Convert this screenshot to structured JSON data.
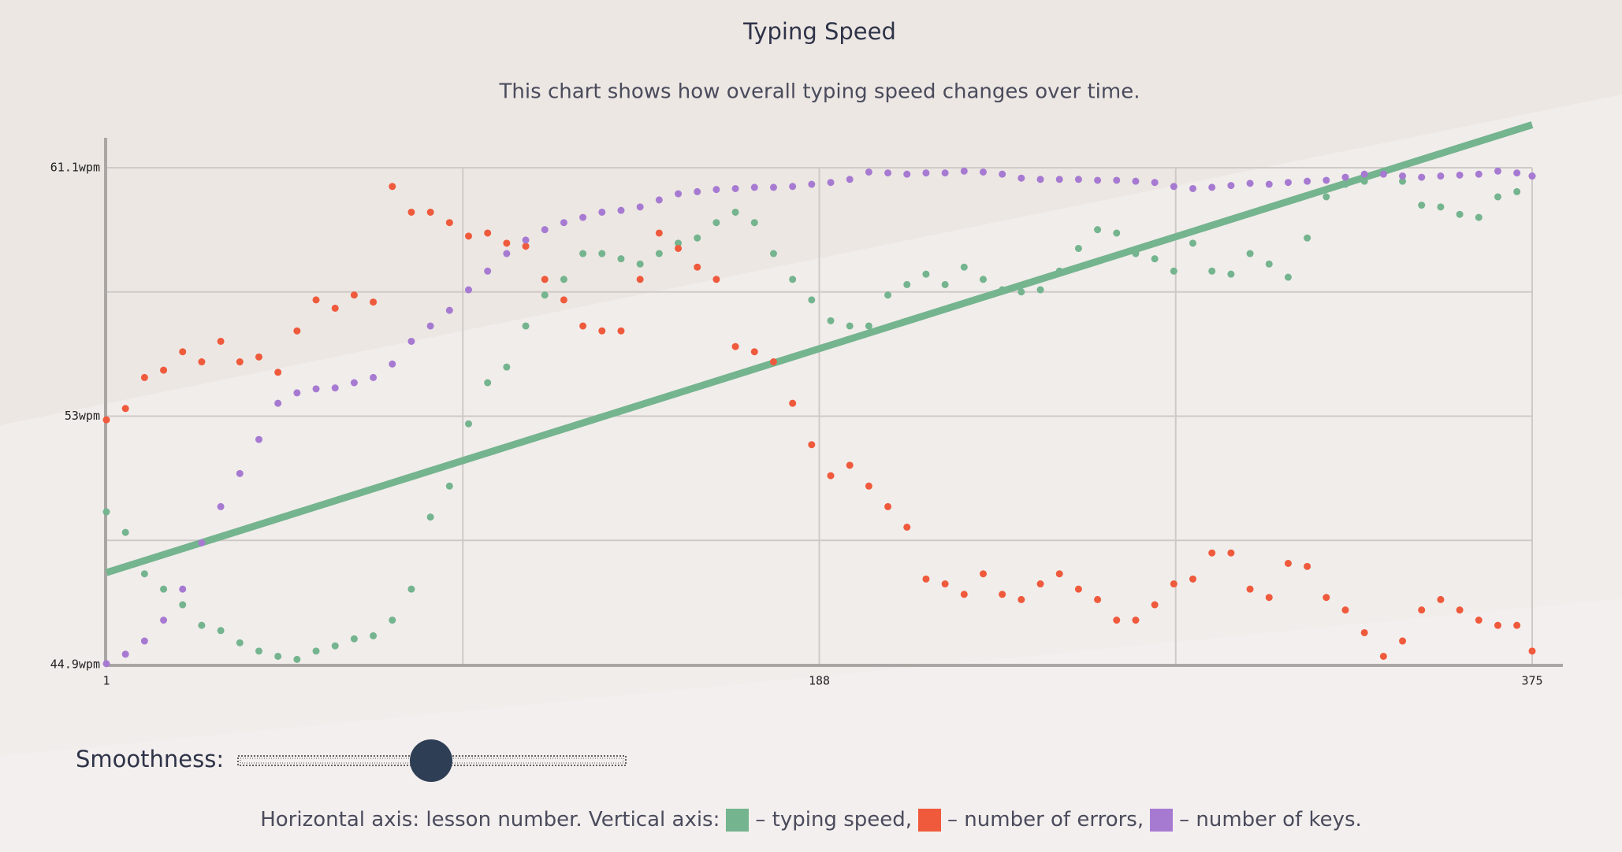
{
  "chart_data": {
    "type": "scatter",
    "title": "Typing Speed",
    "subtitle": "This chart shows how overall typing speed changes over time.",
    "slider_label": "Smoothness:",
    "legend_prefix": "Horizontal axis: lesson number. Vertical axis:",
    "x": [
      1,
      6,
      11,
      16,
      21,
      26,
      31,
      36,
      41,
      46,
      51,
      56,
      61,
      66,
      71,
      76,
      81,
      86,
      91,
      96,
      101,
      106,
      111,
      116,
      121,
      126,
      131,
      136,
      141,
      146,
      151,
      156,
      161,
      166,
      171,
      176,
      181,
      186,
      191,
      196,
      201,
      206,
      211,
      216,
      221,
      226,
      231,
      236,
      241,
      246,
      251,
      256,
      261,
      266,
      271,
      276,
      281,
      286,
      291,
      296,
      301,
      306,
      311,
      316,
      321,
      326,
      331,
      336,
      341,
      346,
      351,
      356,
      361,
      366,
      371,
      375
    ],
    "series": [
      {
        "name": "– typing speed,",
        "color": "#74b48e",
        "values": [
          49.88,
          49.21,
          47.86,
          47.36,
          46.85,
          46.18,
          46.01,
          45.61,
          45.34,
          45.17,
          45.07,
          45.34,
          45.51,
          45.74,
          45.84,
          46.35,
          47.36,
          49.71,
          50.72,
          52.75,
          54.09,
          54.6,
          55.94,
          56.95,
          57.46,
          58.3,
          58.3,
          58.13,
          57.96,
          58.3,
          58.64,
          58.81,
          59.31,
          59.65,
          59.31,
          58.3,
          57.46,
          56.79,
          56.11,
          55.94,
          55.94,
          56.95,
          57.29,
          57.63,
          57.29,
          57.86,
          57.46,
          57.12,
          57.05,
          57.12,
          57.73,
          58.47,
          59.08,
          58.97,
          58.3,
          58.13,
          57.73,
          58.64,
          57.73,
          57.63,
          58.3,
          57.96,
          57.53,
          58.81,
          60.15,
          60.56,
          60.66,
          60.99,
          60.66,
          59.88,
          59.82,
          59.58,
          59.48,
          60.15,
          60.32,
          60.83
        ]
      },
      {
        "name": "– number of errors,",
        "color": "#ef5a3c",
        "values": [
          52.88,
          53.25,
          54.26,
          54.5,
          55.1,
          54.77,
          55.44,
          54.77,
          54.93,
          54.43,
          55.78,
          56.79,
          56.52,
          56.95,
          56.72,
          60.49,
          59.65,
          59.65,
          59.31,
          58.87,
          58.97,
          58.64,
          58.54,
          57.46,
          56.79,
          55.94,
          55.78,
          55.78,
          57.46,
          58.97,
          58.47,
          57.86,
          57.46,
          55.27,
          55.1,
          54.77,
          53.42,
          52.07,
          51.06,
          51.4,
          50.72,
          50.05,
          49.38,
          47.69,
          47.53,
          47.19,
          47.86,
          47.19,
          47.02,
          47.53,
          47.86,
          47.36,
          47.02,
          46.35,
          46.35,
          46.85,
          47.53,
          47.69,
          48.54,
          48.54,
          47.36,
          47.09,
          48.2,
          48.1,
          47.09,
          46.68,
          45.94,
          45.17,
          45.67,
          46.68,
          47.02,
          46.68,
          46.35,
          46.18,
          46.18,
          45.34
        ]
      },
      {
        "name": "– number of keys.",
        "color": "#a77ad2",
        "values": [
          44.93,
          45.24,
          45.67,
          46.35,
          47.36,
          48.87,
          50.05,
          51.13,
          52.24,
          53.42,
          53.76,
          53.89,
          53.92,
          54.09,
          54.26,
          54.7,
          55.44,
          55.94,
          56.45,
          57.12,
          57.73,
          58.3,
          58.74,
          59.08,
          59.31,
          59.48,
          59.65,
          59.71,
          59.82,
          60.05,
          60.25,
          60.32,
          60.39,
          60.42,
          60.46,
          60.46,
          60.49,
          60.56,
          60.62,
          60.72,
          60.96,
          60.93,
          60.89,
          60.93,
          60.93,
          60.99,
          60.96,
          60.89,
          60.76,
          60.72,
          60.72,
          60.72,
          60.69,
          60.69,
          60.66,
          60.62,
          60.49,
          60.42,
          60.46,
          60.52,
          60.59,
          60.56,
          60.62,
          60.66,
          60.69,
          60.79,
          60.89,
          60.89,
          60.83,
          60.79,
          60.83,
          60.86,
          60.89,
          60.99,
          60.93,
          60.83
        ]
      }
    ],
    "trend": {
      "color": "#74b48e",
      "x": [
        1,
        375
      ],
      "values": [
        47.9,
        62.5
      ]
    },
    "xlim": [
      1,
      375
    ],
    "xticks": [
      1,
      188,
      375
    ],
    "xgrid": [
      94.5,
      281.5
    ],
    "ylim": [
      44.9,
      61.1
    ],
    "yticks": [
      {
        "value": 44.9,
        "label": "44.9wpm"
      },
      {
        "value": 53,
        "label": "53wpm"
      },
      {
        "value": 61.1,
        "label": "61.1wpm"
      }
    ],
    "ygrid": [
      48.95,
      57.05
    ],
    "grid": true
  }
}
